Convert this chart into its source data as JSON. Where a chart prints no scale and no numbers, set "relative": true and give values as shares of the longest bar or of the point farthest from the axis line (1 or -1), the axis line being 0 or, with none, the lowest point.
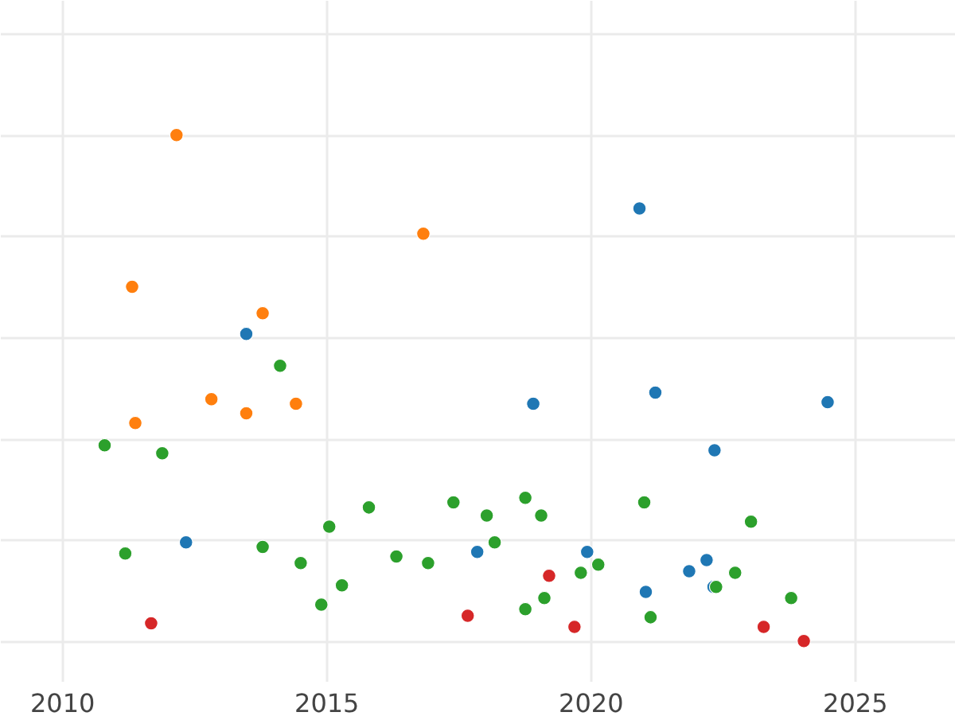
{
  "chart_data": {
    "type": "scatter",
    "relative": true,
    "grid": true,
    "marker": "circle",
    "xlim": [
      2008.83,
      2026.9
    ],
    "xticks": [
      2010,
      2015,
      2020,
      2025
    ],
    "series": [
      {
        "color": "#1f77b4",
        "x": [
          2020.93,
          2013.49,
          2018.92,
          2021.23,
          2024.49,
          2022.35,
          2012.35,
          2017.86,
          2019.94,
          2022.2,
          2021.87,
          2021.05,
          2022.33
        ],
        "values": [
          0.855,
          0.607,
          0.469,
          0.491,
          0.472,
          0.377,
          0.195,
          0.176,
          0.176,
          0.16,
          0.138,
          0.097,
          0.107
        ]
      },
      {
        "color": "#ff7f0e",
        "x": [
          2012.17,
          2011.33,
          2016.84,
          2013.8,
          2012.83,
          2011.39,
          2013.49,
          2014.43
        ],
        "values": [
          1.0,
          0.7,
          0.805,
          0.648,
          0.478,
          0.431,
          0.45,
          0.469
        ]
      },
      {
        "color": "#2ca02c",
        "x": [
          2010.81,
          2011.9,
          2011.2,
          2014.13,
          2013.8,
          2014.52,
          2015.06,
          2014.91,
          2015.3,
          2015.81,
          2016.33,
          2016.93,
          2017.41,
          2018.04,
          2018.19,
          2018.77,
          2019.07,
          2018.77,
          2019.13,
          2019.82,
          2020.15,
          2021.02,
          2021.14,
          2022.38,
          2022.74,
          2023.04,
          2023.8
        ],
        "values": [
          0.387,
          0.371,
          0.173,
          0.544,
          0.186,
          0.154,
          0.226,
          0.072,
          0.11,
          0.264,
          0.167,
          0.154,
          0.274,
          0.248,
          0.195,
          0.283,
          0.248,
          0.063,
          0.085,
          0.135,
          0.151,
          0.274,
          0.047,
          0.107,
          0.135,
          0.236,
          0.085
        ]
      },
      {
        "color": "#d62728",
        "x": [
          2011.69,
          2017.68,
          2019.22,
          2019.7,
          2023.28,
          2024.04
        ],
        "values": [
          0.035,
          0.05,
          0.129,
          0.028,
          0.028,
          0.0
        ]
      }
    ]
  }
}
